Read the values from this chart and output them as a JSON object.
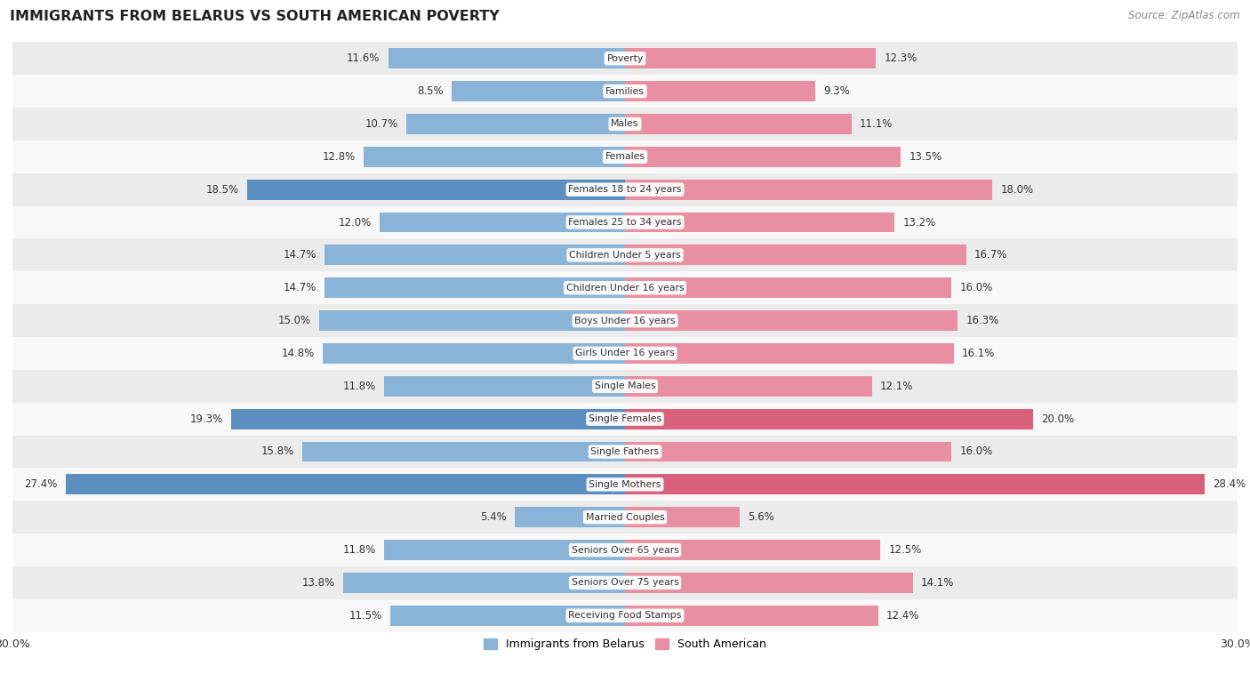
{
  "title": "IMMIGRANTS FROM BELARUS VS SOUTH AMERICAN POVERTY",
  "source": "Source: ZipAtlas.com",
  "categories": [
    "Poverty",
    "Families",
    "Males",
    "Females",
    "Females 18 to 24 years",
    "Females 25 to 34 years",
    "Children Under 5 years",
    "Children Under 16 years",
    "Boys Under 16 years",
    "Girls Under 16 years",
    "Single Males",
    "Single Females",
    "Single Fathers",
    "Single Mothers",
    "Married Couples",
    "Seniors Over 65 years",
    "Seniors Over 75 years",
    "Receiving Food Stamps"
  ],
  "belarus_values": [
    11.6,
    8.5,
    10.7,
    12.8,
    18.5,
    12.0,
    14.7,
    14.7,
    15.0,
    14.8,
    11.8,
    19.3,
    15.8,
    27.4,
    5.4,
    11.8,
    13.8,
    11.5
  ],
  "south_american_values": [
    12.3,
    9.3,
    11.1,
    13.5,
    18.0,
    13.2,
    16.7,
    16.0,
    16.3,
    16.1,
    12.1,
    20.0,
    16.0,
    28.4,
    5.6,
    12.5,
    14.1,
    12.4
  ],
  "belarus_color": "#8ab4d7",
  "south_american_color": "#e88fa4",
  "belarus_highlight_indices": [
    4,
    11,
    13
  ],
  "south_american_highlight_indices": [
    11,
    13
  ],
  "highlight_belarus_color": "#5a8fbf",
  "highlight_south_american_color": "#d9607a",
  "axis_max": 30.0,
  "background_color": "#ffffff",
  "row_alt_color": "#ebebeb",
  "row_main_color": "#f8f8f8",
  "bar_height": 0.62,
  "legend_belarus": "Immigrants from Belarus",
  "legend_south_american": "South American"
}
